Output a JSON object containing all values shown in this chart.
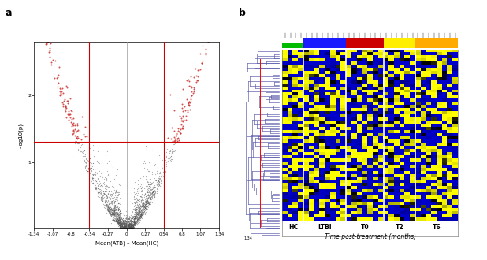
{
  "panel_a": {
    "label": "a",
    "xlabel": "Mean(ATB) – Mean(HC)",
    "ylabel": "-log10(p)",
    "xlim": [
      -1.34,
      1.34
    ],
    "ylim": [
      0,
      2.8
    ],
    "xticks": [
      -1.34,
      -1.07,
      -0.8,
      -0.54,
      -0.27,
      0,
      0.27,
      0.54,
      0.8,
      1.07,
      1.34
    ],
    "yticks": [
      1,
      2
    ],
    "hline_y": 1.3,
    "vline_x1": -0.54,
    "vline_x2": 0.54,
    "hline_color": "#cc0000",
    "vline_color": "#cc0000",
    "dot_color_sig": "#cc3333",
    "dot_color_ns": "#555555",
    "n_dots": 3000,
    "seed": 42
  },
  "panel_b": {
    "label": "b",
    "group_labels": [
      "HC",
      "LTBI",
      "T0",
      "T2",
      "T6"
    ],
    "xlabel": "Time post-treatment (months)",
    "color_bars_row1": [
      "#00bb00",
      "#1a1aff",
      "#cc0000",
      "#ffee00",
      "#ffaa00"
    ],
    "color_bars_row2": [
      "#ffffff",
      "#1a1aff",
      "#cc0000",
      "#ffee00",
      "#ffaa00"
    ],
    "n_rows": 55,
    "n_cols_per_group": [
      4,
      8,
      7,
      6,
      8
    ],
    "dendro_color": "#5555aa",
    "seed": 99
  },
  "background_color": "#ffffff",
  "figure_width": 6.18,
  "figure_height": 3.3,
  "dpi": 100
}
